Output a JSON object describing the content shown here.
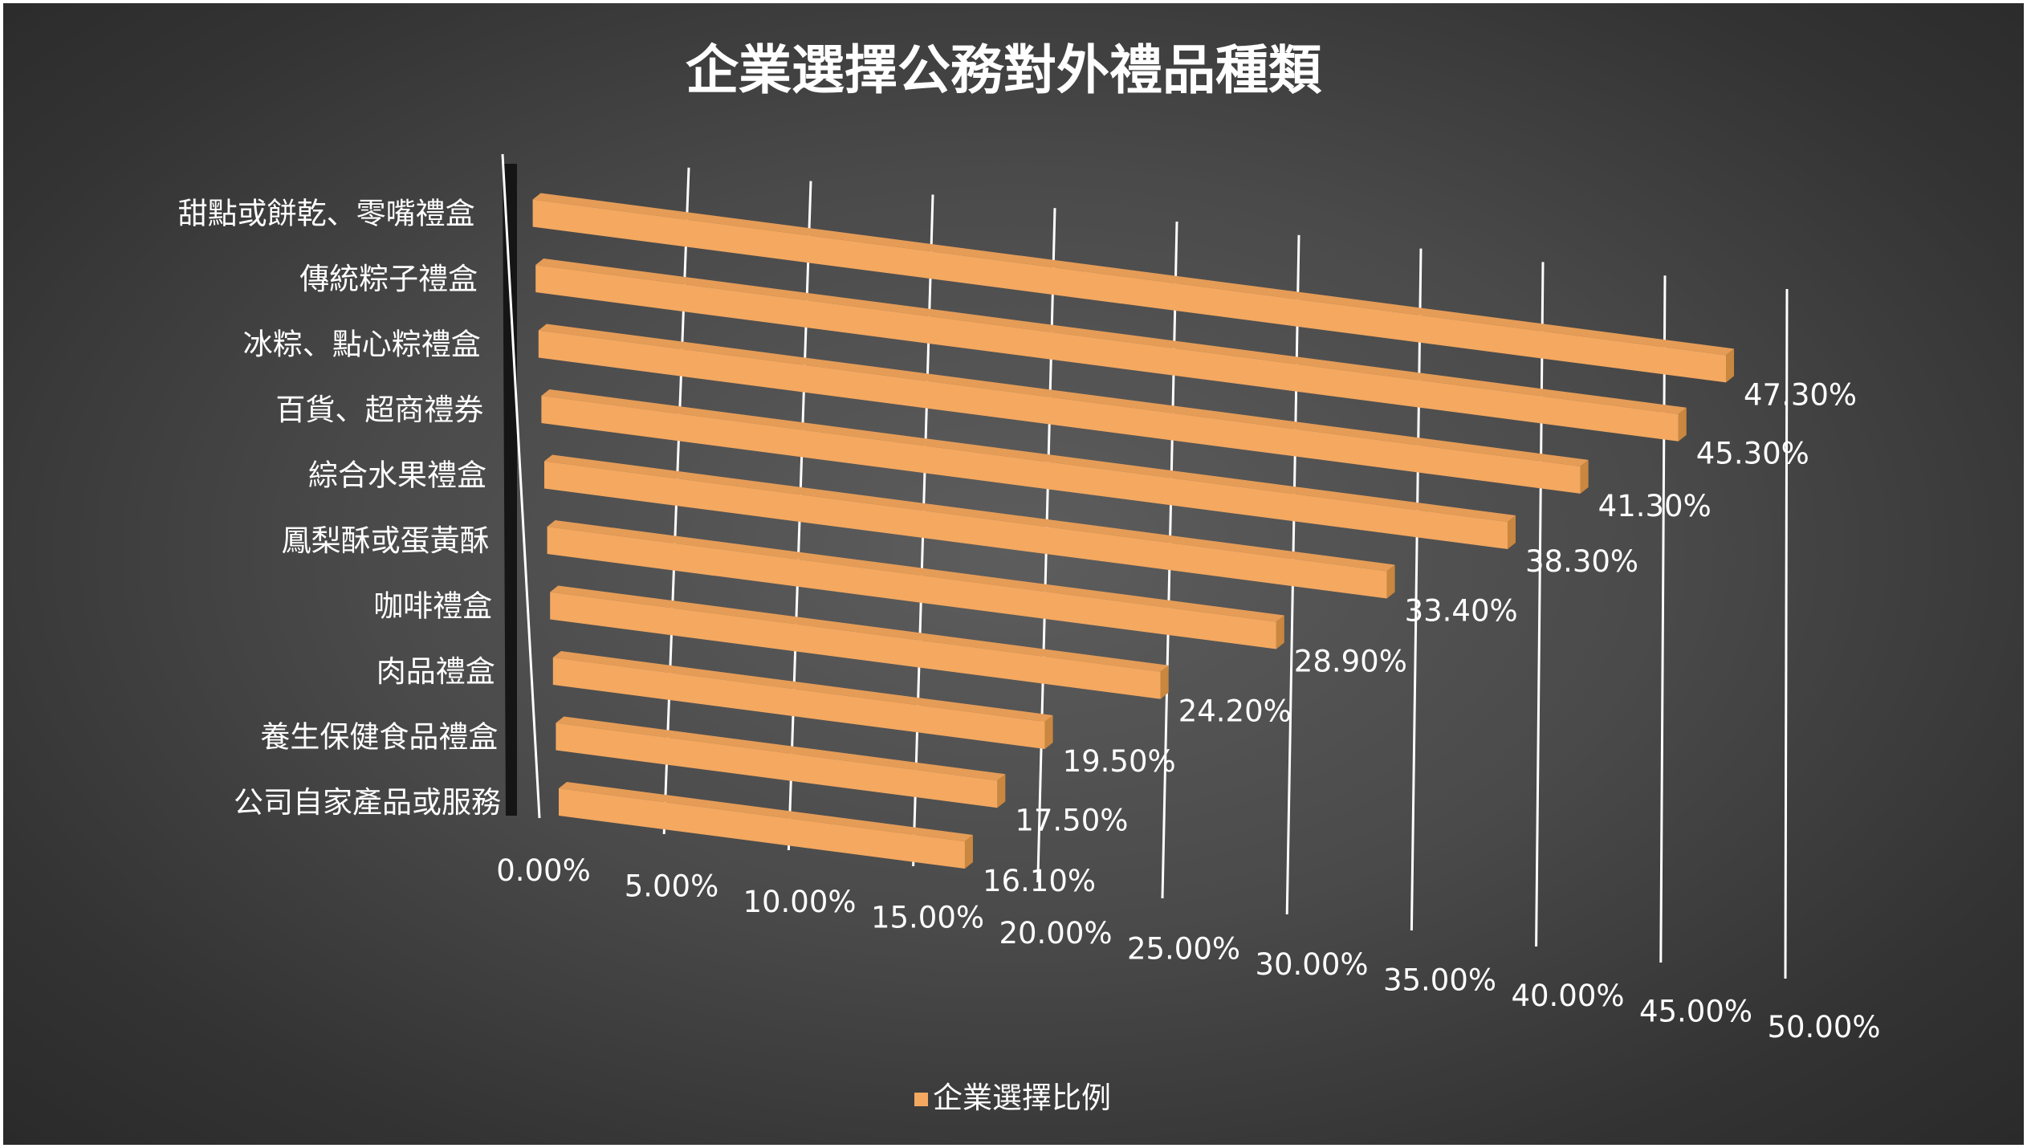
{
  "chart_data": {
    "type": "bar",
    "orientation": "horizontal",
    "style": "3d",
    "title": "企業選擇公務對外禮品種類",
    "categories": [
      "甜點或餅乾、零嘴禮盒",
      "傳統粽子禮盒",
      "冰粽、點心粽禮盒",
      "百貨、超商禮券",
      "綜合水果禮盒",
      "鳳梨酥或蛋黃酥",
      "咖啡禮盒",
      "肉品禮盒",
      "養生保健食品禮盒",
      "公司自家產品或服務"
    ],
    "series": [
      {
        "name": "企業選擇比例",
        "values": [
          47.3,
          45.3,
          41.3,
          38.3,
          33.4,
          28.9,
          24.2,
          19.5,
          17.5,
          16.1
        ],
        "labels": [
          "47.30%",
          "45.30%",
          "41.30%",
          "38.30%",
          "33.40%",
          "28.90%",
          "24.20%",
          "19.50%",
          "17.50%",
          "16.10%"
        ],
        "color": "#F4A860"
      }
    ],
    "xlim": [
      0,
      50
    ],
    "ticks": [
      "0.00%",
      "5.00%",
      "10.00%",
      "15.00%",
      "20.00%",
      "25.00%",
      "30.00%",
      "35.00%",
      "40.00%",
      "45.00%",
      "50.00%"
    ],
    "grid": true,
    "legend_position": "bottom",
    "background": "#4a4a4a",
    "text_color": "#ffffff"
  }
}
